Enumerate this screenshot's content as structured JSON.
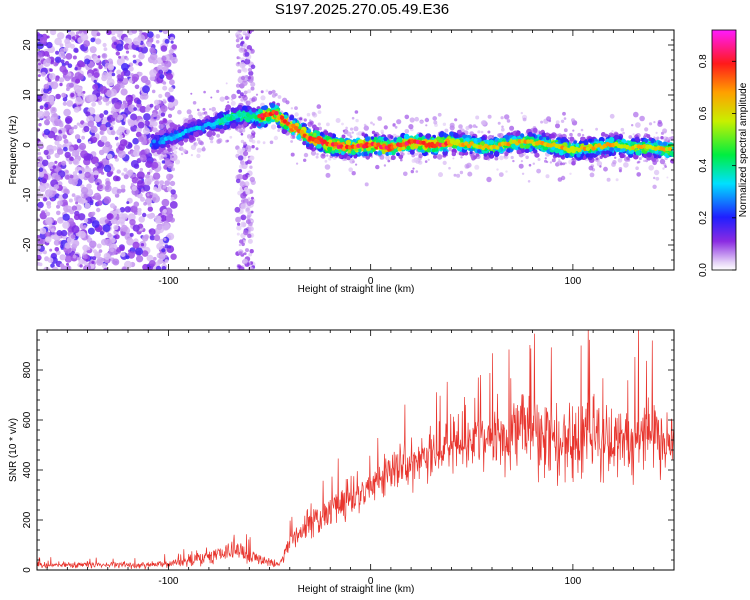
{
  "title": "S197.2025.270.05.49.E36",
  "chart_data": [
    {
      "type": "heatmap",
      "name": "spectrogram",
      "xlabel": "Height of straight line (km)",
      "ylabel": "Frequency (Hz)",
      "xlim": [
        -165,
        150
      ],
      "ylim": [
        -25,
        23
      ],
      "xticks": [
        -100,
        0,
        100
      ],
      "yticks": [
        -20,
        -10,
        0,
        10,
        20
      ],
      "ridge": {
        "x": [
          -105,
          -95,
          -85,
          -75,
          -65,
          -55,
          -48,
          -40,
          -30,
          -20,
          -10,
          0,
          10,
          20,
          30,
          40,
          50,
          60,
          70,
          80,
          90,
          100,
          110,
          120,
          130,
          140,
          148
        ],
        "freq": [
          0.5,
          2,
          3.5,
          4.5,
          6,
          5.5,
          6.5,
          4,
          1.5,
          0,
          -0.5,
          0,
          -0.5,
          0.5,
          0,
          0.5,
          0,
          -0.5,
          0.5,
          0.5,
          0,
          -1,
          -0.5,
          0,
          -0.5,
          -0.5,
          -1
        ]
      },
      "colorbar": {
        "label": "Normalized spectral amplitude",
        "range": [
          0.0,
          0.92
        ],
        "ticks": [
          "0.0",
          "0.2",
          "0.4",
          "0.6",
          "0.8"
        ],
        "tick_values": [
          0.0,
          0.2,
          0.4,
          0.6,
          0.8
        ]
      }
    },
    {
      "type": "line",
      "name": "snr",
      "xlabel": "Height of straight line (km)",
      "ylabel": "SNR (10 * v/v)",
      "xlim": [
        -165,
        150
      ],
      "ylim": [
        0,
        960
      ],
      "xticks": [
        -100,
        0,
        100
      ],
      "yticks": [
        0,
        200,
        400,
        600,
        800
      ],
      "color": "#e8352e",
      "trend": {
        "x": [
          -165,
          -120,
          -100,
          -85,
          -75,
          -68,
          -55,
          -45,
          -40,
          -30,
          -20,
          -10,
          0,
          10,
          20,
          30,
          40,
          50,
          60,
          70,
          80,
          90,
          100,
          110,
          120,
          130,
          140,
          150
        ],
        "mean": [
          20,
          20,
          25,
          45,
          65,
          85,
          45,
          20,
          110,
          190,
          230,
          280,
          330,
          400,
          430,
          470,
          500,
          520,
          530,
          540,
          550,
          530,
          510,
          500,
          510,
          520,
          520,
          530
        ],
        "spread": [
          10,
          12,
          14,
          25,
          35,
          40,
          25,
          12,
          45,
          60,
          65,
          70,
          75,
          80,
          80,
          85,
          90,
          100,
          120,
          140,
          160,
          170,
          170,
          170,
          165,
          150,
          140,
          130
        ]
      }
    }
  ]
}
